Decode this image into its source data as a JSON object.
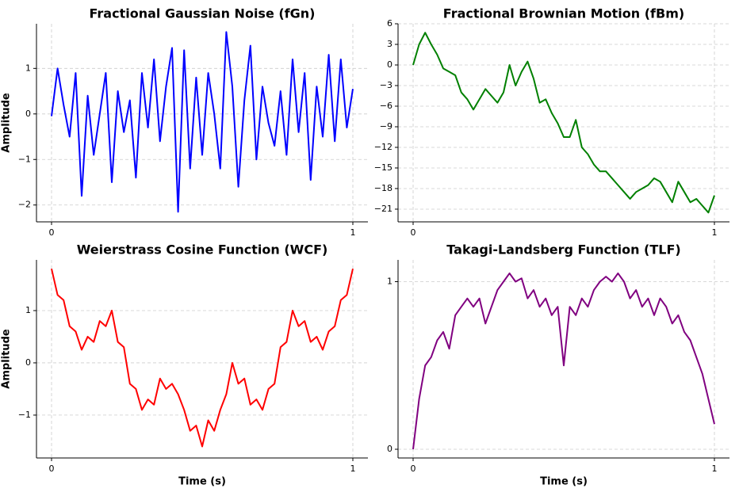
{
  "chart_data": [
    {
      "type": "line",
      "title": "Fractional Gaussian Noise (fGn)",
      "ylabel": "Amplitude",
      "color": "#0000ff",
      "grid": true,
      "xlim": [
        -0.05,
        1.05
      ],
      "xticks": [
        0,
        1
      ],
      "ylim": [
        -2.37,
        1.98
      ],
      "yticks": [
        {
          "value": -2,
          "label": "−2"
        },
        {
          "value": -1,
          "label": "−1"
        },
        0,
        1
      ],
      "x": [
        0,
        0.02,
        0.04,
        0.06,
        0.08,
        0.1,
        0.12,
        0.14,
        0.16,
        0.18,
        0.2,
        0.22,
        0.24,
        0.26,
        0.28,
        0.3,
        0.32,
        0.34,
        0.36,
        0.38,
        0.4,
        0.42,
        0.44,
        0.46,
        0.48,
        0.5,
        0.52,
        0.54,
        0.56,
        0.58,
        0.6,
        0.62,
        0.64,
        0.66,
        0.68,
        0.7,
        0.72,
        0.74,
        0.76,
        0.78,
        0.8,
        0.82,
        0.84,
        0.86,
        0.88,
        0.9,
        0.92,
        0.94,
        0.96,
        0.98,
        1
      ],
      "values": [
        -0.05,
        1.0,
        0.2,
        -0.5,
        0.9,
        -1.8,
        0.4,
        -0.9,
        0.0,
        0.9,
        -1.5,
        0.5,
        -0.4,
        0.3,
        -1.4,
        0.9,
        -0.3,
        1.2,
        -0.6,
        0.6,
        1.45,
        -2.15,
        1.4,
        -1.2,
        0.8,
        -0.9,
        0.9,
        0.0,
        -1.2,
        1.8,
        0.6,
        -1.6,
        0.3,
        1.5,
        -1.0,
        0.6,
        -0.2,
        -0.7,
        0.5,
        -0.9,
        1.2,
        -0.4,
        0.9,
        -1.45,
        0.6,
        -0.5,
        1.3,
        -0.6,
        1.2,
        -0.3,
        0.55
      ]
    },
    {
      "type": "line",
      "title": "Fractional Brownian Motion (fBm)",
      "color": "#008000",
      "grid": true,
      "xlim": [
        -0.05,
        1.05
      ],
      "xticks": [
        0,
        1
      ],
      "ylim": [
        -22.85,
        6
      ],
      "yticks": [
        {
          "value": -21,
          "label": "−21"
        },
        {
          "value": -18,
          "label": "−18"
        },
        {
          "value": -15,
          "label": "−15"
        },
        {
          "value": -12,
          "label": "−12"
        },
        {
          "value": -9,
          "label": "−9"
        },
        {
          "value": -6,
          "label": "−6"
        },
        {
          "value": -3,
          "label": "−3"
        },
        0,
        3,
        6
      ],
      "x": [
        0,
        0.02,
        0.04,
        0.06,
        0.08,
        0.1,
        0.12,
        0.14,
        0.16,
        0.18,
        0.2,
        0.22,
        0.24,
        0.26,
        0.28,
        0.3,
        0.32,
        0.34,
        0.36,
        0.38,
        0.4,
        0.42,
        0.44,
        0.46,
        0.48,
        0.5,
        0.52,
        0.54,
        0.56,
        0.58,
        0.6,
        0.62,
        0.64,
        0.66,
        0.68,
        0.7,
        0.72,
        0.74,
        0.76,
        0.78,
        0.8,
        0.82,
        0.84,
        0.86,
        0.88,
        0.9,
        0.92,
        0.94,
        0.96,
        0.98,
        1
      ],
      "values": [
        0,
        3,
        4.7,
        3,
        1.5,
        -0.5,
        -1,
        -1.5,
        -4,
        -5,
        -6.5,
        -5,
        -3.5,
        -4.5,
        -5.5,
        -4,
        0,
        -3,
        -1,
        0.5,
        -2,
        -5.5,
        -5,
        -7,
        -8.5,
        -10.5,
        -10.5,
        -8,
        -12,
        -13,
        -14.5,
        -15.5,
        -15.5,
        -16.5,
        -17.5,
        -18.5,
        -19.5,
        -18.5,
        -18,
        -17.5,
        -16.5,
        -17,
        -18.5,
        -20,
        -17,
        -18.5,
        -20,
        -19.5,
        -20.5,
        -21.5,
        -19
      ]
    },
    {
      "type": "line",
      "title": "Weierstrass Cosine Function (WCF)",
      "ylabel": "Amplitude",
      "xlabel": "Time (s)",
      "color": "#ff0000",
      "grid": true,
      "xlim": [
        -0.05,
        1.05
      ],
      "xticks": [
        0,
        1
      ],
      "ylim": [
        -1.82,
        1.97
      ],
      "yticks": [
        {
          "value": -1,
          "label": "−1"
        },
        0,
        1
      ],
      "x": [
        0,
        0.02,
        0.04,
        0.06,
        0.08,
        0.1,
        0.12,
        0.14,
        0.16,
        0.18,
        0.2,
        0.22,
        0.24,
        0.26,
        0.28,
        0.3,
        0.32,
        0.34,
        0.36,
        0.38,
        0.4,
        0.42,
        0.44,
        0.46,
        0.48,
        0.5,
        0.52,
        0.54,
        0.56,
        0.58,
        0.6,
        0.62,
        0.64,
        0.66,
        0.68,
        0.7,
        0.72,
        0.74,
        0.76,
        0.78,
        0.8,
        0.82,
        0.84,
        0.86,
        0.88,
        0.9,
        0.92,
        0.94,
        0.96,
        0.98,
        1
      ],
      "values": [
        1.8,
        1.3,
        1.2,
        0.7,
        0.6,
        0.25,
        0.5,
        0.4,
        0.8,
        0.7,
        1.0,
        0.4,
        0.3,
        -0.4,
        -0.5,
        -0.9,
        -0.7,
        -0.8,
        -0.3,
        -0.5,
        -0.4,
        -0.6,
        -0.9,
        -1.3,
        -1.2,
        -1.6,
        -1.1,
        -1.3,
        -0.9,
        -0.6,
        0.0,
        -0.4,
        -0.3,
        -0.8,
        -0.7,
        -0.9,
        -0.5,
        -0.4,
        0.3,
        0.4,
        1.0,
        0.7,
        0.8,
        0.4,
        0.5,
        0.25,
        0.6,
        0.7,
        1.2,
        1.3,
        1.8
      ]
    },
    {
      "type": "line",
      "title": "Takagi-Landsberg Function (TLF)",
      "xlabel": "Time (s)",
      "color": "#800080",
      "grid": true,
      "xlim": [
        -0.05,
        1.05
      ],
      "xticks": [
        0,
        1
      ],
      "ylim": [
        -0.052,
        1.13
      ],
      "yticks": [
        0,
        1
      ],
      "x": [
        0,
        0.02,
        0.04,
        0.06,
        0.08,
        0.1,
        0.12,
        0.14,
        0.16,
        0.18,
        0.2,
        0.22,
        0.24,
        0.26,
        0.28,
        0.3,
        0.32,
        0.34,
        0.36,
        0.38,
        0.4,
        0.42,
        0.44,
        0.46,
        0.48,
        0.5,
        0.52,
        0.54,
        0.56,
        0.58,
        0.6,
        0.62,
        0.64,
        0.66,
        0.68,
        0.7,
        0.72,
        0.74,
        0.76,
        0.78,
        0.8,
        0.82,
        0.84,
        0.86,
        0.88,
        0.9,
        0.92,
        0.94,
        0.96,
        0.98,
        1
      ],
      "values": [
        0,
        0.3,
        0.5,
        0.55,
        0.65,
        0.7,
        0.6,
        0.8,
        0.85,
        0.9,
        0.85,
        0.9,
        0.75,
        0.85,
        0.95,
        1.0,
        1.05,
        1.0,
        1.02,
        0.9,
        0.95,
        0.85,
        0.9,
        0.8,
        0.85,
        0.5,
        0.85,
        0.8,
        0.9,
        0.85,
        0.95,
        1.0,
        1.03,
        1.0,
        1.05,
        1.0,
        0.9,
        0.95,
        0.85,
        0.9,
        0.8,
        0.9,
        0.85,
        0.75,
        0.8,
        0.7,
        0.65,
        0.55,
        0.45,
        0.3,
        0.15
      ]
    }
  ]
}
